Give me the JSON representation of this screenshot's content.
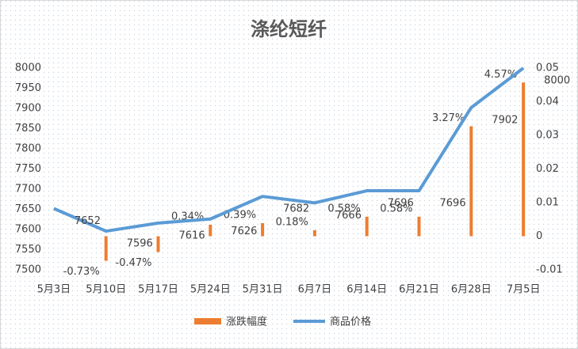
{
  "chart_data": {
    "type": "combo",
    "title": "涤纶短纤",
    "categories": [
      "5月3日",
      "5月10日",
      "5月17日",
      "5月24日",
      "5月31日",
      "6月7日",
      "6月14日",
      "6月21日",
      "6月28日",
      "7月5日"
    ],
    "series": [
      {
        "name": "涨跌幅度",
        "type": "bar",
        "axis": "y2",
        "color": "#ed7d31",
        "values": [
          null,
          -0.0073,
          -0.0047,
          0.0034,
          0.0039,
          0.0018,
          0.0058,
          0.0058,
          0.0327,
          0.0457
        ],
        "value_labels": [
          null,
          "-0.73%",
          "-0.47%",
          "0.34%",
          "0.39%",
          "0.18%",
          "0.58%",
          "0.58%",
          "3.27%",
          "4.57%"
        ]
      },
      {
        "name": "商品价格",
        "type": "line",
        "color": "#5b9bd5",
        "values": [
          7652,
          7596,
          7616,
          7626,
          7682,
          7666,
          7696,
          7696,
          7902,
          8000
        ]
      }
    ],
    "ylim": [
      7500,
      8000
    ],
    "yticks": [
      7500,
      7550,
      7600,
      7650,
      7700,
      7750,
      7800,
      7850,
      7900,
      7950,
      8000
    ],
    "y2lim": [
      -0.01,
      0.05
    ],
    "y2ticks": [
      -0.01,
      0,
      0.01,
      0.02,
      0.03,
      0.04,
      0.05
    ],
    "grid": false,
    "legend": "bottom"
  }
}
